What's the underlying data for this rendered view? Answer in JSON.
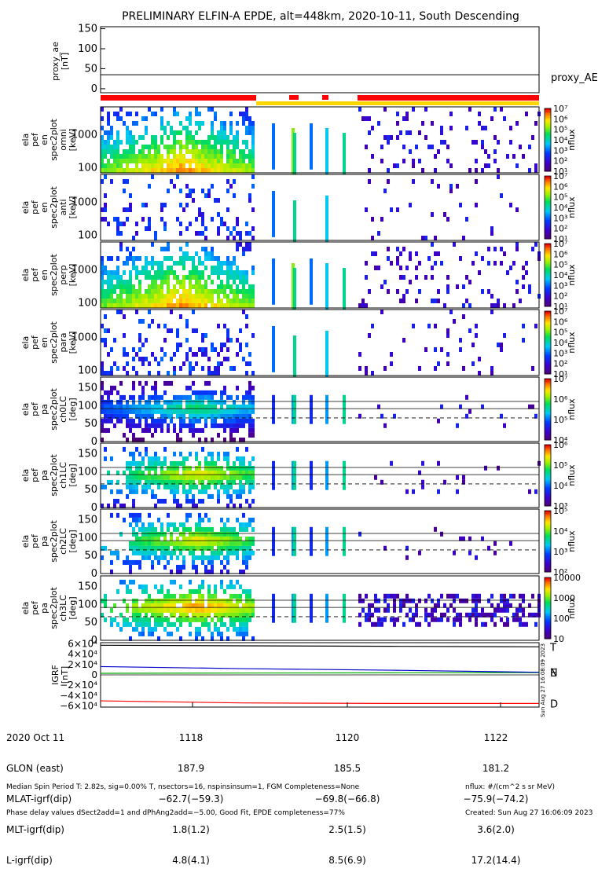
{
  "title": "PRELIMINARY ELFIN-A EPDE, alt=448km, 2020-10-11, South Descending",
  "colors": {
    "mode_bar_red": "#ff0000",
    "mode_bar_yellow": "#ffd700",
    "igrf_x": "#0000cc",
    "igrf_y": "#00aa00",
    "igrf_z": "#000000",
    "igrf_d": "#ff0000"
  },
  "side_stamp": "Sun Aug 27 16:08:09 2023",
  "chart_data": [
    {
      "type": "line",
      "panel": "proxy_ae",
      "ylabel": [
        "proxy_ae",
        "[nT]"
      ],
      "yticks": [
        "150",
        "100",
        "50",
        "0"
      ],
      "ylim": [
        -10,
        155
      ],
      "legend": "proxy_AE",
      "x": [
        1116.9,
        1122.8
      ],
      "values": [
        35,
        35
      ]
    },
    {
      "type": "heatmap",
      "panel": "spectrogram",
      "ylabel": [
        "ela",
        "pef",
        "en",
        "spec2plot",
        "omni",
        "[keV]"
      ],
      "yticks": [
        "1000",
        "100"
      ],
      "cbar_ticks": [
        "10⁷",
        "10⁶",
        "10⁵",
        "10⁴",
        "10³",
        "10²",
        "10¹"
      ],
      "cbar_label": "nflux"
    },
    {
      "type": "heatmap",
      "panel": "spectrogram",
      "ylabel": [
        "ela",
        "pef",
        "en",
        "spec2plot",
        "anti",
        "[keV]"
      ],
      "yticks": [
        "1000",
        "100"
      ],
      "cbar_ticks": [
        "10⁷",
        "10⁶",
        "10⁵",
        "10⁴",
        "10³",
        "10²",
        "10¹"
      ],
      "cbar_label": "nflux"
    },
    {
      "type": "heatmap",
      "panel": "spectrogram",
      "ylabel": [
        "ela",
        "pef",
        "en",
        "spec2plot",
        "perp",
        "[keV]"
      ],
      "yticks": [
        "1000",
        "100"
      ],
      "cbar_ticks": [
        "10⁷",
        "10⁶",
        "10⁵",
        "10⁴",
        "10³",
        "10²",
        "10¹"
      ],
      "cbar_label": "nflux"
    },
    {
      "type": "heatmap",
      "panel": "spectrogram",
      "ylabel": [
        "ela",
        "pef",
        "en",
        "spec2plot",
        "para",
        "[keV]"
      ],
      "yticks": [
        "1000",
        "100"
      ],
      "cbar_ticks": [
        "10⁷",
        "10⁶",
        "10⁵",
        "10⁴",
        "10³",
        "10²",
        "10¹"
      ],
      "cbar_label": "nflux"
    },
    {
      "type": "heatmap",
      "panel": "pitch",
      "ylabel": [
        "ela",
        "pef",
        "pa",
        "spec2plot",
        "ch0LC",
        "[deg]"
      ],
      "yticks": [
        "150",
        "100",
        "50",
        "0"
      ],
      "cbar_ticks": [
        "10⁷",
        "10⁶",
        "10⁵",
        "10⁴"
      ],
      "cbar_label": "nflux"
    },
    {
      "type": "heatmap",
      "panel": "pitch",
      "ylabel": [
        "ela",
        "pef",
        "pa",
        "spec2plot",
        "ch1LC",
        "[deg]"
      ],
      "yticks": [
        "150",
        "100",
        "50",
        "0"
      ],
      "cbar_ticks": [
        "10⁶",
        "10⁵",
        "10⁴",
        "10³"
      ],
      "cbar_label": "nflux"
    },
    {
      "type": "heatmap",
      "panel": "pitch",
      "ylabel": [
        "ela",
        "pef",
        "pa",
        "spec2plot",
        "ch2LC",
        "[deg]"
      ],
      "yticks": [
        "150",
        "100",
        "50",
        "0"
      ],
      "cbar_ticks": [
        "10⁵",
        "10⁴",
        "10³",
        "10²"
      ],
      "cbar_label": "nflux"
    },
    {
      "type": "heatmap",
      "panel": "pitch",
      "ylabel": [
        "ela",
        "pef",
        "pa",
        "spec2plot",
        "ch3LC",
        "[deg]"
      ],
      "yticks": [
        "150",
        "100",
        "50",
        "0"
      ],
      "cbar_ticks": [
        "10000",
        "1000",
        "100",
        "10"
      ],
      "cbar_label": "nflux"
    },
    {
      "type": "line",
      "panel": "igrf",
      "ylabel": [
        "IGRF",
        "[nT]"
      ],
      "yticks": [
        "6×10⁴",
        "4×10⁴",
        "2×10⁴",
        "0",
        "−2×10⁴",
        "−4×10⁴",
        "−6×10⁴"
      ],
      "ylim": [
        -62000,
        62000
      ],
      "series": [
        {
          "name": "T",
          "values": [
            57000,
            56000,
            55000,
            54000
          ]
        },
        {
          "name": "E",
          "values": [
            3000,
            3500,
            4000,
            4500
          ]
        },
        {
          "name": "N",
          "values": [
            16000,
            12000,
            9000,
            5000
          ]
        },
        {
          "name": "D",
          "values": [
            -50000,
            -54000,
            -55000,
            -55000
          ]
        }
      ],
      "x": [
        1116.9,
        1118.8,
        1120.8,
        1122.8
      ]
    }
  ],
  "axis_rows": {
    "labels": [
      "2020 Oct 11",
      "GLON (east)",
      "MLAT-igrf(dip)",
      "MLT-igrf(dip)",
      "L-igrf(dip)"
    ],
    "ticks": [
      {
        "time": "1118",
        "vals": [
          "187.9",
          "−62.7(−59.3)",
          "1.8(1.2)",
          "4.8(4.1)"
        ]
      },
      {
        "time": "1120",
        "vals": [
          "185.5",
          "−69.8(−66.8)",
          "2.5(1.5)",
          "8.5(6.9)"
        ]
      },
      {
        "time": "1122",
        "vals": [
          "181.2",
          "−75.9(−74.2)",
          "3.6(2.0)",
          "17.2(14.4)"
        ]
      }
    ]
  },
  "footer": {
    "left1": "Median Spin Period T: 2.82s, sig=0.00% T, nsectors=16, nspinsinsum=1, FGM Completeness=None",
    "left2": "Phase delay values dSect2add=1 and dPhAng2add=−5.00, Good Fit, EPDE completeness=77%",
    "right1": "nflux: #/(cm^2 s sr MeV)",
    "right2": "Created: Sun Aug 27 16:06:09 2023"
  }
}
